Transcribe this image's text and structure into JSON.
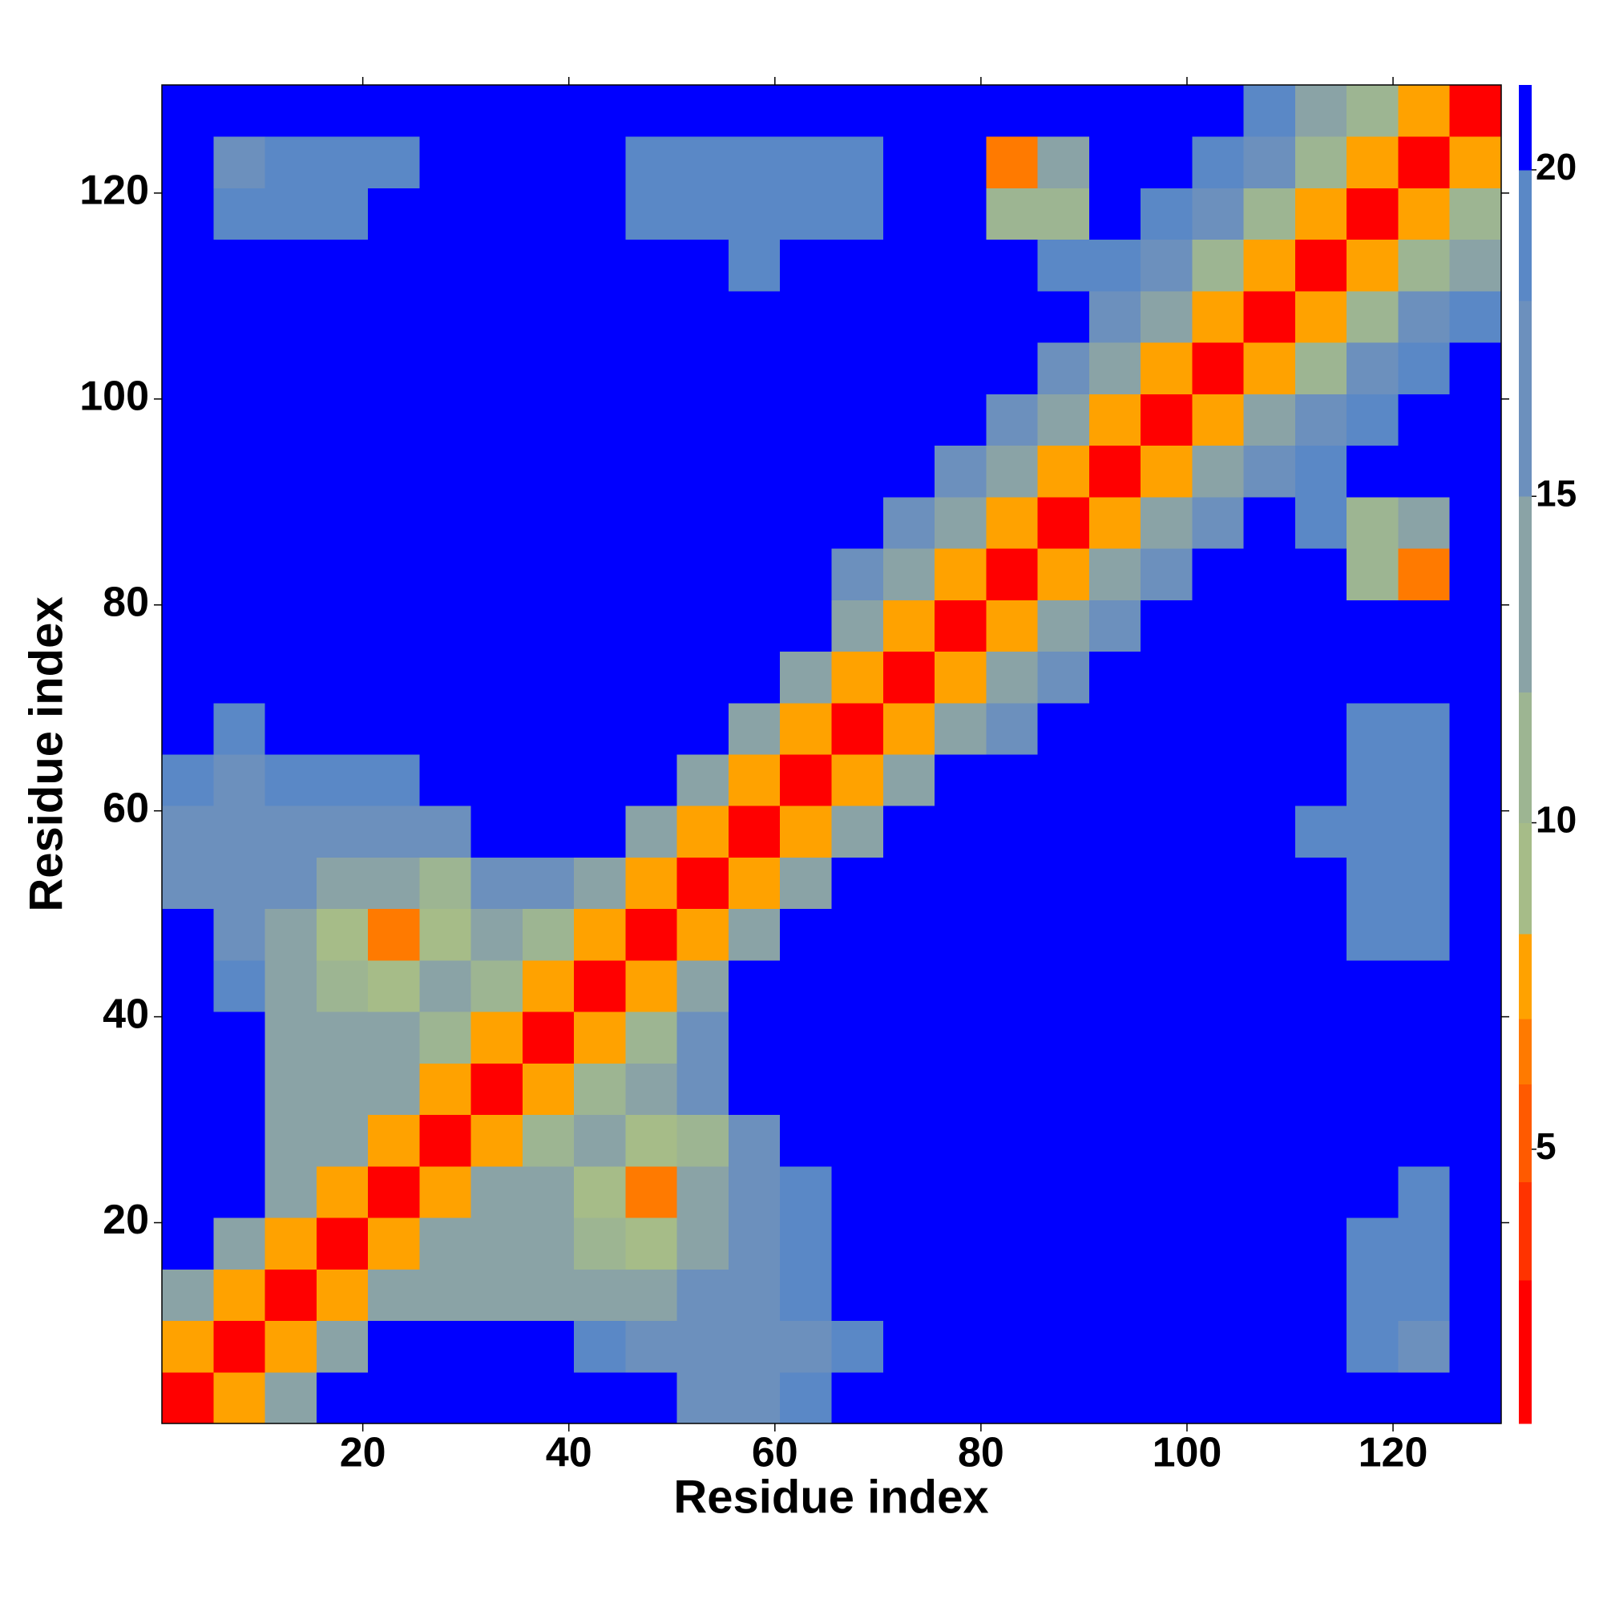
{
  "chart_data": {
    "type": "heatmap",
    "xlabel": "Residue index",
    "ylabel": "Residue index",
    "x": [
      3,
      8,
      13,
      18,
      23,
      28,
      33,
      38,
      43,
      48,
      53,
      58,
      63,
      68,
      73,
      78,
      83,
      88,
      93,
      98,
      103,
      108,
      113,
      118,
      123,
      128
    ],
    "y": [
      3,
      8,
      13,
      18,
      23,
      28,
      33,
      38,
      43,
      48,
      53,
      58,
      63,
      68,
      73,
      78,
      83,
      88,
      93,
      98,
      103,
      108,
      113,
      118,
      123,
      128
    ],
    "xlim": [
      0.5,
      130.5
    ],
    "ylim": [
      0.5,
      130.5
    ],
    "xticks": [
      20,
      40,
      60,
      80,
      100,
      120
    ],
    "yticks": [
      20,
      40,
      60,
      80,
      100,
      120
    ],
    "values": [
      [
        3,
        8,
        14,
        21,
        21,
        21,
        21,
        21,
        21,
        21,
        18,
        18,
        20,
        21,
        21,
        21,
        21,
        21,
        21,
        21,
        21,
        21,
        21,
        21,
        21,
        21
      ],
      [
        8,
        3,
        8,
        14,
        21,
        21,
        21,
        21,
        19,
        17,
        16,
        17,
        18,
        19,
        21,
        21,
        21,
        21,
        21,
        21,
        21,
        21,
        21,
        19,
        18,
        21
      ],
      [
        14,
        8,
        3,
        8,
        14,
        13,
        13,
        13,
        13,
        15,
        16,
        18,
        19,
        21,
        21,
        21,
        21,
        21,
        21,
        21,
        21,
        21,
        21,
        19,
        19,
        21
      ],
      [
        21,
        14,
        8,
        3,
        8,
        14,
        13,
        13,
        12,
        9,
        14,
        17,
        19,
        21,
        21,
        21,
        21,
        21,
        21,
        21,
        21,
        21,
        21,
        19,
        19,
        21
      ],
      [
        21,
        21,
        14,
        8,
        3,
        8,
        14,
        13,
        9,
        7,
        13,
        17,
        19,
        21,
        21,
        21,
        21,
        21,
        21,
        21,
        21,
        21,
        21,
        21,
        19,
        21
      ],
      [
        21,
        21,
        13,
        14,
        8,
        3,
        8,
        12,
        13,
        10,
        12,
        16,
        21,
        21,
        21,
        21,
        21,
        21,
        21,
        21,
        21,
        21,
        21,
        21,
        21,
        21
      ],
      [
        21,
        21,
        13,
        13,
        14,
        8,
        3,
        8,
        12,
        15,
        18,
        21,
        21,
        21,
        21,
        21,
        21,
        21,
        21,
        21,
        21,
        21,
        21,
        21,
        21,
        21
      ],
      [
        21,
        21,
        13,
        13,
        13,
        12,
        8,
        3,
        8,
        12,
        18,
        21,
        21,
        21,
        21,
        21,
        21,
        21,
        21,
        21,
        21,
        21,
        21,
        21,
        21,
        21
      ],
      [
        21,
        19,
        13,
        12,
        9,
        13,
        12,
        8,
        3,
        8,
        14,
        21,
        21,
        21,
        21,
        21,
        21,
        21,
        21,
        21,
        21,
        21,
        21,
        21,
        21,
        21
      ],
      [
        21,
        17,
        15,
        9,
        7,
        10,
        15,
        12,
        8,
        3,
        8,
        14,
        21,
        21,
        21,
        21,
        21,
        21,
        21,
        21,
        21,
        21,
        21,
        19,
        19,
        21
      ],
      [
        18,
        16,
        16,
        14,
        13,
        12,
        18,
        18,
        14,
        8,
        3,
        8,
        14,
        21,
        21,
        21,
        21,
        21,
        21,
        21,
        21,
        21,
        21,
        19,
        19,
        21
      ],
      [
        18,
        17,
        18,
        17,
        17,
        16,
        21,
        21,
        21,
        14,
        8,
        3,
        8,
        14,
        21,
        21,
        21,
        21,
        21,
        21,
        21,
        21,
        19,
        19,
        19,
        21
      ],
      [
        20,
        18,
        19,
        19,
        19,
        21,
        21,
        21,
        21,
        21,
        14,
        8,
        3,
        8,
        14,
        21,
        21,
        21,
        21,
        21,
        21,
        21,
        21,
        19,
        19,
        21
      ],
      [
        21,
        19,
        21,
        21,
        21,
        21,
        21,
        21,
        21,
        21,
        21,
        14,
        8,
        3,
        8,
        14,
        17,
        21,
        21,
        21,
        21,
        21,
        21,
        19,
        19,
        21
      ],
      [
        21,
        21,
        21,
        21,
        21,
        21,
        21,
        21,
        21,
        21,
        21,
        21,
        14,
        8,
        3,
        8,
        14,
        17,
        21,
        21,
        21,
        21,
        21,
        21,
        21,
        21
      ],
      [
        21,
        21,
        21,
        21,
        21,
        21,
        21,
        21,
        21,
        21,
        21,
        21,
        21,
        14,
        8,
        3,
        8,
        14,
        17,
        21,
        21,
        21,
        21,
        21,
        21,
        21
      ],
      [
        21,
        21,
        21,
        21,
        21,
        21,
        21,
        21,
        21,
        21,
        21,
        21,
        21,
        17,
        14,
        8,
        3,
        8,
        14,
        17,
        21,
        21,
        21,
        12,
        7,
        21
      ],
      [
        21,
        21,
        21,
        21,
        21,
        21,
        21,
        21,
        21,
        21,
        21,
        21,
        21,
        21,
        17,
        14,
        8,
        3,
        8,
        14,
        17,
        21,
        19,
        12,
        14,
        21
      ],
      [
        21,
        21,
        21,
        21,
        21,
        21,
        21,
        21,
        21,
        21,
        21,
        21,
        21,
        21,
        21,
        17,
        14,
        8,
        3,
        8,
        14,
        17,
        19,
        21,
        21,
        21
      ],
      [
        21,
        21,
        21,
        21,
        21,
        21,
        21,
        21,
        21,
        21,
        21,
        21,
        21,
        21,
        21,
        21,
        17,
        14,
        8,
        3,
        8,
        14,
        16,
        19,
        21,
        21
      ],
      [
        21,
        21,
        21,
        21,
        21,
        21,
        21,
        21,
        21,
        21,
        21,
        21,
        21,
        21,
        21,
        21,
        21,
        17,
        14,
        8,
        3,
        8,
        12,
        16,
        19,
        21
      ],
      [
        21,
        21,
        21,
        21,
        21,
        21,
        21,
        21,
        21,
        21,
        21,
        21,
        21,
        21,
        21,
        21,
        21,
        21,
        17,
        14,
        8,
        3,
        8,
        12,
        16,
        19
      ],
      [
        21,
        21,
        21,
        21,
        21,
        21,
        21,
        21,
        21,
        21,
        21,
        19,
        21,
        21,
        21,
        21,
        21,
        19,
        19,
        16,
        12,
        8,
        3,
        8,
        12,
        14
      ],
      [
        21,
        19,
        19,
        19,
        21,
        21,
        21,
        21,
        21,
        19,
        19,
        19,
        19,
        19,
        21,
        21,
        12,
        12,
        21,
        19,
        16,
        12,
        8,
        3,
        8,
        12
      ],
      [
        21,
        18,
        19,
        19,
        19,
        21,
        21,
        21,
        21,
        19,
        19,
        19,
        19,
        19,
        21,
        21,
        7,
        14,
        21,
        21,
        19,
        16,
        12,
        8,
        3,
        8
      ],
      [
        21,
        21,
        21,
        21,
        21,
        21,
        21,
        21,
        21,
        21,
        21,
        21,
        21,
        21,
        21,
        21,
        21,
        21,
        21,
        21,
        21,
        19,
        14,
        12,
        8,
        3
      ]
    ],
    "colorbar": {
      "lim": [
        0.8,
        21.3
      ],
      "ticks": [
        5,
        10,
        15,
        20
      ],
      "bounds": [
        0.8,
        3,
        4.5,
        6,
        7,
        8.3,
        10,
        12,
        15,
        18,
        20,
        21.3
      ],
      "colors": [
        "#ff0000",
        "#ff3300",
        "#ff5a00",
        "#ff7a00",
        "#ffa200",
        "#a6bc88",
        "#9db592",
        "#8aa3a6",
        "#6c90bd",
        "#5a88c6",
        "#0000ff"
      ]
    }
  }
}
